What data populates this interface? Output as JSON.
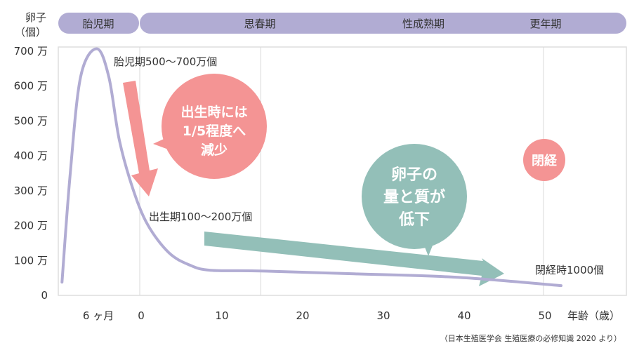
{
  "colors": {
    "purple": "#b1acd3",
    "pink": "#f49494",
    "teal": "#93bfb8",
    "grid": "#d9d9d9"
  },
  "phases": [
    {
      "label": "胎児期"
    },
    {
      "label": "思春期"
    },
    {
      "label": "性成熟期"
    },
    {
      "label": "更年期"
    }
  ],
  "chart_data": {
    "type": "line",
    "ylabel": "卵子（個）",
    "xlabel": "年齢（歳）",
    "y_unit": "万",
    "ylim": [
      0,
      700
    ],
    "yticks": [
      {
        "v": 700,
        "label": "700 万"
      },
      {
        "v": 600,
        "label": "600 万"
      },
      {
        "v": 500,
        "label": "500 万"
      },
      {
        "v": 400,
        "label": "400 万"
      },
      {
        "v": 300,
        "label": "300 万"
      },
      {
        "v": 200,
        "label": "200 万"
      },
      {
        "v": 100,
        "label": "100 万"
      },
      {
        "v": 0,
        "label": "0"
      }
    ],
    "xticks": [
      {
        "v": -5.3,
        "label": "6 ヶ月"
      },
      {
        "v": 0,
        "label": "0"
      },
      {
        "v": 10,
        "label": "10"
      },
      {
        "v": 20,
        "label": "20"
      },
      {
        "v": 30,
        "label": "30"
      },
      {
        "v": 40,
        "label": "40"
      },
      {
        "v": 50,
        "label": "50"
      }
    ],
    "vgrid": [
      0,
      15,
      50
    ],
    "series": [
      {
        "name": "卵子数",
        "points": [
          [
            -9.8,
            36
          ],
          [
            -8.8,
            342
          ],
          [
            -7.5,
            624
          ],
          [
            -5.5,
            705
          ],
          [
            -4,
            624
          ],
          [
            -2.7,
            443
          ],
          [
            -1,
            302
          ],
          [
            0.8,
            201
          ],
          [
            3.4,
            121
          ],
          [
            6,
            85
          ],
          [
            8.6,
            70
          ],
          [
            14.8,
            68
          ],
          [
            26,
            60
          ],
          [
            39,
            50
          ],
          [
            52,
            26
          ]
        ]
      }
    ],
    "annotations": {
      "fetal": "胎児期500〜700万個",
      "birth": "出生期100〜200万個",
      "menopause_count": "閉経時1000個",
      "bubble_birth": [
        "出生時には",
        "1/5程度へ",
        "減少"
      ],
      "bubble_quality": [
        "卵子の",
        "量と質が",
        "低下"
      ],
      "bubble_menopause": "閉経"
    },
    "source": "（日本生殖医学会 生殖医療の必修知識 2020 より）"
  }
}
